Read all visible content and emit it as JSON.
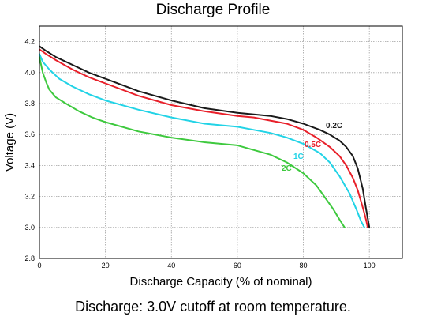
{
  "chart_data": {
    "type": "line",
    "title": "Discharge Profile",
    "xlabel": "Discharge Capacity (% of nominal)",
    "ylabel": "Voltage (V)",
    "xlim": [
      0,
      110
    ],
    "ylim": [
      2.8,
      4.3
    ],
    "xticks": [
      "0",
      "20",
      "40",
      "60",
      "80",
      "100"
    ],
    "yticks": [
      "2.8",
      "3.0",
      "3.2",
      "3.4",
      "3.6",
      "3.8",
      "4.0",
      "4.2"
    ],
    "grid": true,
    "series": [
      {
        "name": "0.2C",
        "color": "#1a1a1a",
        "x": [
          0,
          2,
          5,
          10,
          15,
          20,
          30,
          40,
          50,
          60,
          65,
          70,
          75,
          80,
          85,
          88,
          91,
          93,
          95,
          96.5,
          98,
          99,
          100
        ],
        "y": [
          4.17,
          4.14,
          4.1,
          4.05,
          4.0,
          3.96,
          3.88,
          3.82,
          3.77,
          3.74,
          3.73,
          3.72,
          3.7,
          3.67,
          3.63,
          3.6,
          3.56,
          3.52,
          3.46,
          3.38,
          3.25,
          3.12,
          3.0
        ]
      },
      {
        "name": "0.5C",
        "color": "#e8202a",
        "x": [
          0,
          2,
          5,
          10,
          15,
          20,
          30,
          40,
          50,
          60,
          65,
          70,
          75,
          80,
          84,
          88,
          91,
          93,
          95,
          96.5,
          98,
          99,
          99.5
        ],
        "y": [
          4.15,
          4.12,
          4.08,
          4.02,
          3.97,
          3.93,
          3.85,
          3.79,
          3.75,
          3.72,
          3.71,
          3.69,
          3.67,
          3.63,
          3.58,
          3.52,
          3.46,
          3.4,
          3.32,
          3.24,
          3.13,
          3.05,
          3.0
        ]
      },
      {
        "name": "1C",
        "color": "#22d3e6",
        "x": [
          0,
          1,
          3,
          6,
          10,
          15,
          20,
          30,
          40,
          50,
          60,
          65,
          70,
          75,
          80,
          85,
          88,
          91,
          94,
          96,
          97.5,
          98.5
        ],
        "y": [
          4.12,
          4.07,
          4.02,
          3.96,
          3.91,
          3.86,
          3.82,
          3.76,
          3.71,
          3.67,
          3.65,
          3.63,
          3.61,
          3.58,
          3.54,
          3.48,
          3.42,
          3.33,
          3.22,
          3.12,
          3.04,
          3.0
        ]
      },
      {
        "name": "2C",
        "color": "#3ec93e",
        "x": [
          0,
          1,
          2,
          3,
          5,
          8,
          12,
          16,
          20,
          30,
          40,
          50,
          60,
          65,
          70,
          75,
          80,
          84,
          87,
          89,
          91,
          92.5
        ],
        "y": [
          4.1,
          4.0,
          3.94,
          3.89,
          3.84,
          3.8,
          3.75,
          3.71,
          3.68,
          3.62,
          3.58,
          3.55,
          3.53,
          3.5,
          3.47,
          3.42,
          3.35,
          3.27,
          3.18,
          3.12,
          3.05,
          3.0
        ]
      }
    ]
  },
  "series_labels": {
    "0.2C": "0.2C",
    "0.5C": "0.5C",
    "1C": "1C",
    "2C": "2C"
  },
  "caption": "Discharge: 3.0V cutoff at room temperature."
}
